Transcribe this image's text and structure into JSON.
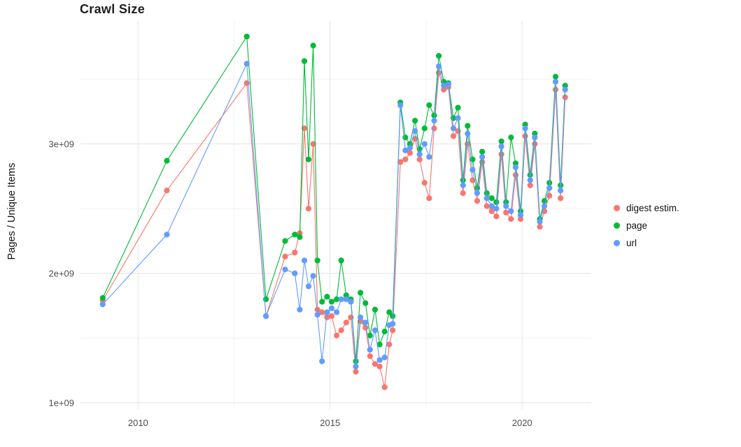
{
  "chart_data": {
    "type": "line",
    "title": "Crawl Size",
    "xlabel": "",
    "ylabel": "Pages / Unique Items",
    "xlim": [
      2008.5,
      2021.8
    ],
    "ylim": [
      950000000.0,
      3950000000.0
    ],
    "x_ticks": [
      2010,
      2015,
      2020
    ],
    "x_tick_labels": [
      "2010",
      "2015",
      "2020"
    ],
    "y_ticks": [
      1000000000.0,
      2000000000.0,
      3000000000.0
    ],
    "y_tick_labels": [
      "1e+09",
      "2e+09",
      "3e+09"
    ],
    "grid": {
      "x_minor": [
        2012.5,
        2017.5
      ],
      "y_minor": [
        1500000000.0,
        2500000000.0,
        3500000000.0
      ]
    },
    "legend_position": "right",
    "x": [
      2009.08,
      2010.75,
      2012.83,
      2013.33,
      2013.83,
      2014.08,
      2014.21,
      2014.33,
      2014.44,
      2014.56,
      2014.67,
      2014.79,
      2014.92,
      2015.04,
      2015.17,
      2015.29,
      2015.42,
      2015.54,
      2015.67,
      2015.79,
      2015.92,
      2016.04,
      2016.17,
      2016.29,
      2016.42,
      2016.54,
      2016.63,
      2016.83,
      2016.96,
      2017.08,
      2017.21,
      2017.33,
      2017.46,
      2017.58,
      2017.71,
      2017.83,
      2017.96,
      2018.08,
      2018.21,
      2018.33,
      2018.46,
      2018.58,
      2018.71,
      2018.83,
      2018.96,
      2019.08,
      2019.21,
      2019.33,
      2019.46,
      2019.58,
      2019.71,
      2019.83,
      2019.96,
      2020.08,
      2020.21,
      2020.33,
      2020.46,
      2020.58,
      2020.71,
      2020.87,
      2021.0,
      2021.12
    ],
    "series": [
      {
        "id": "digest",
        "name": "digest estim.",
        "color": "#F8766D",
        "values": [
          1790000000.0,
          2640000000.0,
          3470000000.0,
          1670000000.0,
          2130000000.0,
          2160000000.0,
          2310000000.0,
          3120000000.0,
          2500000000.0,
          3000000000.0,
          1720000000.0,
          1700000000.0,
          1660000000.0,
          1670000000.0,
          1520000000.0,
          1560000000.0,
          1620000000.0,
          1660000000.0,
          1240000000.0,
          1630000000.0,
          1580000000.0,
          1360000000.0,
          1300000000.0,
          1280000000.0,
          1120000000.0,
          1450000000.0,
          1560000000.0,
          2860000000.0,
          2880000000.0,
          2930000000.0,
          3040000000.0,
          2880000000.0,
          2700000000.0,
          2580000000.0,
          3120000000.0,
          3550000000.0,
          3420000000.0,
          3440000000.0,
          3060000000.0,
          3100000000.0,
          2620000000.0,
          3000000000.0,
          2720000000.0,
          2560000000.0,
          2860000000.0,
          2520000000.0,
          2480000000.0,
          2440000000.0,
          2920000000.0,
          2470000000.0,
          2420000000.0,
          2760000000.0,
          2420000000.0,
          3060000000.0,
          2680000000.0,
          3000000000.0,
          2360000000.0,
          2480000000.0,
          2600000000.0,
          3420000000.0,
          2580000000.0,
          3360000000.0
        ]
      },
      {
        "id": "page",
        "name": "page",
        "color": "#00BA38",
        "values": [
          1810000000.0,
          2870000000.0,
          3830000000.0,
          1800000000.0,
          2250000000.0,
          2300000000.0,
          2280000000.0,
          3640000000.0,
          2880000000.0,
          3760000000.0,
          2100000000.0,
          1780000000.0,
          1820000000.0,
          1780000000.0,
          1800000000.0,
          2100000000.0,
          1830000000.0,
          1800000000.0,
          1320000000.0,
          1850000000.0,
          1770000000.0,
          1520000000.0,
          1720000000.0,
          1450000000.0,
          1550000000.0,
          1700000000.0,
          1670000000.0,
          3320000000.0,
          3050000000.0,
          3000000000.0,
          3180000000.0,
          2960000000.0,
          3120000000.0,
          3300000000.0,
          3220000000.0,
          3680000000.0,
          3480000000.0,
          3470000000.0,
          3200000000.0,
          3280000000.0,
          2720000000.0,
          3140000000.0,
          2880000000.0,
          2660000000.0,
          2940000000.0,
          2620000000.0,
          2580000000.0,
          2550000000.0,
          3020000000.0,
          2550000000.0,
          3050000000.0,
          2850000000.0,
          2480000000.0,
          3150000000.0,
          2760000000.0,
          3080000000.0,
          2420000000.0,
          2560000000.0,
          2700000000.0,
          3520000000.0,
          2680000000.0,
          3450000000.0
        ]
      },
      {
        "id": "url",
        "name": "url",
        "color": "#619CFF",
        "values": [
          1760000000.0,
          2300000000.0,
          3620000000.0,
          1670000000.0,
          2030000000.0,
          2000000000.0,
          1720000000.0,
          2100000000.0,
          1900000000.0,
          1980000000.0,
          1680000000.0,
          1320000000.0,
          1700000000.0,
          1730000000.0,
          1700000000.0,
          1800000000.0,
          1800000000.0,
          1780000000.0,
          1280000000.0,
          1660000000.0,
          1620000000.0,
          1410000000.0,
          1560000000.0,
          1330000000.0,
          1350000000.0,
          1600000000.0,
          1610000000.0,
          3300000000.0,
          2950000000.0,
          2970000000.0,
          3100000000.0,
          2920000000.0,
          3000000000.0,
          2900000000.0,
          3180000000.0,
          3600000000.0,
          3450000000.0,
          3460000000.0,
          3120000000.0,
          3200000000.0,
          2680000000.0,
          3080000000.0,
          2800000000.0,
          2620000000.0,
          2900000000.0,
          2580000000.0,
          2520000000.0,
          2500000000.0,
          2980000000.0,
          2520000000.0,
          2480000000.0,
          2820000000.0,
          2450000000.0,
          3120000000.0,
          2720000000.0,
          3050000000.0,
          2400000000.0,
          2520000000.0,
          2660000000.0,
          3480000000.0,
          2640000000.0,
          3420000000.0
        ]
      }
    ]
  }
}
